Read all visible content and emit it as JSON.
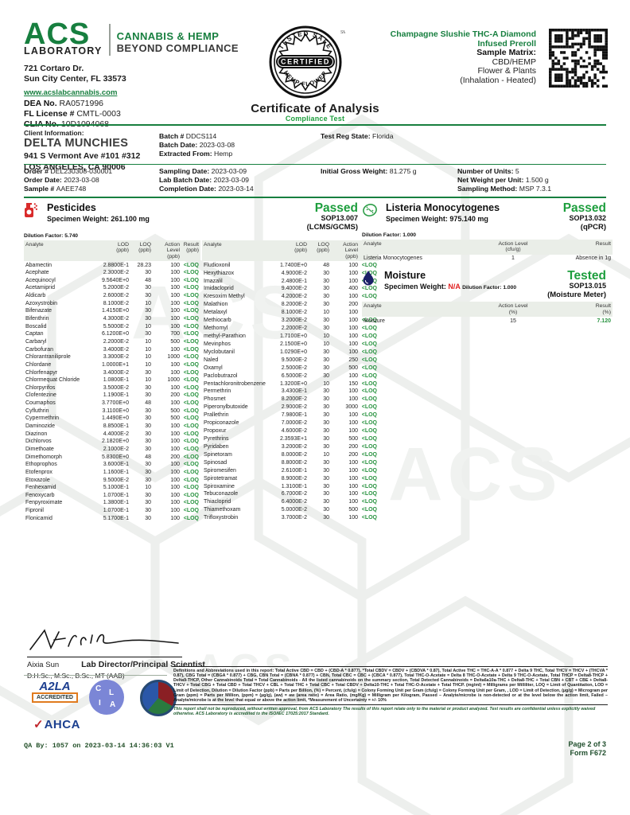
{
  "colors": {
    "brand_green": "#177f3f",
    "status_green": "#1d9e3d",
    "loq_green": "#27923f",
    "na_red": "#e02020"
  },
  "watermark_text": "ACS",
  "header": {
    "logo_acs": "ACS",
    "logo_laboratory": "LABORATORY",
    "tagline1": "CANNABIS & HEMP",
    "tagline2": "BEYOND COMPLIANCE",
    "address_line1": "721 Cortaro Dr.",
    "address_line2": "Sun City Center, FL 33573",
    "website": "www.acslabcannabis.com",
    "contact_fields": [
      {
        "label": "DEA No.",
        "value": "RA0571996"
      },
      {
        "label": "FL License #",
        "value": "CMTL-0003"
      },
      {
        "label": "CLIA No.",
        "value": "10D1094068"
      }
    ],
    "seal": {
      "top": "TESTED SAFE",
      "center": "CERTIFIED",
      "bottom": "HEMP FLOWER",
      "sm": "SM"
    },
    "product_line1": "Champagne Slushie THC-A Diamond",
    "product_line2": "Infused Preroll",
    "sample_matrix_label": "Sample Matrix:",
    "sample_matrix_lines": [
      "CBD/HEMP",
      "Flower & Plants",
      "(Inhalation - Heated)"
    ],
    "title": "Certificate of Analysis",
    "subtitle": "Compliance Test"
  },
  "client": {
    "label": "Client Information:",
    "name": "DELTA MUNCHIES",
    "address1": "941 S Vermont Ave #101 #312",
    "address2": "LOS ANGELES, CA 90006"
  },
  "batch_block": [
    {
      "label": "Batch #",
      "value": "DDCS114"
    },
    {
      "label": "Batch Date:",
      "value": "2023-03-08"
    },
    {
      "label": "Extracted From:",
      "value": "Hemp"
    }
  ],
  "test_reg_block": [
    {
      "label": "Test Reg State:",
      "value": "Florida"
    }
  ],
  "order_block": [
    {
      "label": "Order #",
      "value": "DEL230308-030001"
    },
    {
      "label": "Order Date:",
      "value": "2023-03-08"
    },
    {
      "label": "Sample #",
      "value": "AAEE748"
    }
  ],
  "sampling_block": [
    {
      "label": "Sampling Date:",
      "value": "2023-03-09"
    },
    {
      "label": "Lab Batch Date:",
      "value": "2023-03-09"
    },
    {
      "label": "Completion Date:",
      "value": "2023-03-14"
    }
  ],
  "gross_block": [
    {
      "label": "Initial Gross Weight:",
      "value": "81.275 g"
    }
  ],
  "units_block": [
    {
      "label": "Number of Units:",
      "value": "5"
    },
    {
      "label": "Net Weight per Unit:",
      "value": "1.500 g"
    },
    {
      "label": "Sampling Method:",
      "value": "MSP 7.3.1"
    }
  ],
  "pesticides": {
    "title": "Pesticides",
    "specimen_label": "Specimen Weight:",
    "specimen": "261.100 mg",
    "dilution_label": "Dilution Factor:",
    "dilution": "5.740",
    "status": "Passed",
    "sop": "SOP13.007",
    "method": "(LCMS/GCMS)",
    "columns": [
      {
        "key": "analyte",
        "label": "Analyte",
        "unit": ""
      },
      {
        "key": "lod",
        "label": "LOD",
        "unit": "(ppb)"
      },
      {
        "key": "loq",
        "label": "LOQ",
        "unit": "(ppb)"
      },
      {
        "key": "action",
        "label": "Action Level",
        "unit": "(ppb)"
      },
      {
        "key": "result",
        "label": "Result",
        "unit": "(ppb)"
      }
    ],
    "rows_left": [
      [
        "Abamectin",
        "2.8800E-1",
        "28.23",
        "100",
        "<LOQ"
      ],
      [
        "Acephate",
        "2.3000E-2",
        "30",
        "100",
        "<LOQ"
      ],
      [
        "Acequinocyl",
        "9.5640E+0",
        "48",
        "100",
        "<LOQ"
      ],
      [
        "Acetamiprid",
        "5.2000E-2",
        "30",
        "100",
        "<LOQ"
      ],
      [
        "Aldicarb",
        "2.6000E-2",
        "30",
        "100",
        "<LOQ"
      ],
      [
        "Azoxystrobin",
        "8.1000E-2",
        "10",
        "100",
        "<LOQ"
      ],
      [
        "Bifenazate",
        "1.4150E+0",
        "30",
        "100",
        "<LOQ"
      ],
      [
        "Bifenthrin",
        "4.3000E-2",
        "30",
        "100",
        "<LOQ"
      ],
      [
        "Boscalid",
        "5.5000E-2",
        "10",
        "100",
        "<LOQ"
      ],
      [
        "Captan",
        "6.1200E+0",
        "30",
        "700",
        "<LOQ"
      ],
      [
        "Carbaryl",
        "2.2000E-2",
        "10",
        "500",
        "<LOQ"
      ],
      [
        "Carbofuran",
        "3.4000E-2",
        "10",
        "100",
        "<LOQ"
      ],
      [
        "Chlorantraniliprole",
        "3.3000E-2",
        "10",
        "1000",
        "<LOQ"
      ],
      [
        "Chlordane",
        "1.0000E+1",
        "10",
        "100",
        "<LOQ"
      ],
      [
        "Chlorfenapyr",
        "3.4000E-2",
        "30",
        "100",
        "<LOQ"
      ],
      [
        "Chlormequat Chloride",
        "1.0800E-1",
        "10",
        "1000",
        "<LOQ"
      ],
      [
        "Chlorpyrifos",
        "3.5000E-2",
        "30",
        "100",
        "<LOQ"
      ],
      [
        "Clofentezine",
        "1.1900E-1",
        "30",
        "200",
        "<LOQ"
      ],
      [
        "Coumaphos",
        "3.7700E+0",
        "48",
        "100",
        "<LOQ"
      ],
      [
        "Cyfluthrin",
        "3.1100E+0",
        "30",
        "500",
        "<LOQ"
      ],
      [
        "Cypermethrin",
        "1.4490E+0",
        "30",
        "500",
        "<LOQ"
      ],
      [
        "Daminozide",
        "8.8500E-1",
        "30",
        "100",
        "<LOQ"
      ],
      [
        "Diazinon",
        "4.4000E-2",
        "30",
        "100",
        "<LOQ"
      ],
      [
        "Dichlorvos",
        "2.1820E+0",
        "30",
        "100",
        "<LOQ"
      ],
      [
        "Dimethoate",
        "2.1000E-2",
        "30",
        "100",
        "<LOQ"
      ],
      [
        "Dimethomorph",
        "5.8300E+0",
        "48",
        "200",
        "<LOQ"
      ],
      [
        "Ethoprophos",
        "3.6000E-1",
        "30",
        "100",
        "<LOQ"
      ],
      [
        "Etofenprox",
        "1.1600E-1",
        "30",
        "100",
        "<LOQ"
      ],
      [
        "Etoxazole",
        "9.5000E-2",
        "30",
        "100",
        "<LOQ"
      ],
      [
        "Fenhexamid",
        "5.1000E-1",
        "10",
        "100",
        "<LOQ"
      ],
      [
        "Fenoxycarb",
        "1.0700E-1",
        "30",
        "100",
        "<LOQ"
      ],
      [
        "Fenpyroximate",
        "1.3800E-1",
        "30",
        "100",
        "<LOQ"
      ],
      [
        "Fipronil",
        "1.0700E-1",
        "30",
        "100",
        "<LOQ"
      ],
      [
        "Flonicamid",
        "5.1700E-1",
        "30",
        "100",
        "<LOQ"
      ]
    ],
    "rows_right": [
      [
        "Fludioxonil",
        "1.7400E+0",
        "48",
        "100",
        "<LOQ"
      ],
      [
        "Hexythiazox",
        "4.9000E-2",
        "30",
        "100",
        "<LOQ"
      ],
      [
        "Imazalil",
        "2.4800E-1",
        "30",
        "100",
        "<LOQ"
      ],
      [
        "Imidacloprid",
        "9.4000E-2",
        "30",
        "400",
        "<LOQ"
      ],
      [
        "Kresoxim Methyl",
        "4.2000E-2",
        "30",
        "100",
        "<LOQ"
      ],
      [
        "Malathion",
        "8.2000E-2",
        "30",
        "200",
        "<LOQ"
      ],
      [
        "Metalaxyl",
        "8.1000E-2",
        "10",
        "100",
        "<LOQ"
      ],
      [
        "Methiocarb",
        "3.2000E-2",
        "30",
        "100",
        "<LOQ"
      ],
      [
        "Methomyl",
        "2.2000E-2",
        "30",
        "100",
        "<LOQ"
      ],
      [
        "methyl-Parathion",
        "1.7100E+0",
        "10",
        "100",
        "<LOQ"
      ],
      [
        "Mevinphos",
        "2.1500E+0",
        "10",
        "100",
        "<LOQ"
      ],
      [
        "Myclobutanil",
        "1.0290E+0",
        "30",
        "100",
        "<LOQ"
      ],
      [
        "Naled",
        "9.5000E-2",
        "30",
        "250",
        "<LOQ"
      ],
      [
        "Oxamyl",
        "2.5000E-2",
        "30",
        "500",
        "<LOQ"
      ],
      [
        "Paclobutrazol",
        "6.5000E-2",
        "30",
        "100",
        "<LOQ"
      ],
      [
        "Pentachloronitrobenzene",
        "1.3200E+0",
        "10",
        "150",
        "<LOQ"
      ],
      [
        "Permethrin",
        "3.4300E-1",
        "30",
        "100",
        "<LOQ"
      ],
      [
        "Phosmet",
        "8.2000E-2",
        "30",
        "100",
        "<LOQ"
      ],
      [
        "Piperonylbutoxide",
        "2.9000E-2",
        "30",
        "3000",
        "<LOQ"
      ],
      [
        "Prallethrin",
        "7.9800E-1",
        "30",
        "100",
        "<LOQ"
      ],
      [
        "Propiconazole",
        "7.0000E-2",
        "30",
        "100",
        "<LOQ"
      ],
      [
        "Propoxur",
        "4.6000E-2",
        "30",
        "100",
        "<LOQ"
      ],
      [
        "Pyrethrins",
        "2.3593E+1",
        "30",
        "500",
        "<LOQ"
      ],
      [
        "Pyridaben",
        "3.2000E-2",
        "30",
        "200",
        "<LOQ"
      ],
      [
        "Spinetoram",
        "8.0000E-2",
        "10",
        "200",
        "<LOQ"
      ],
      [
        "Spinosad",
        "8.8000E-2",
        "30",
        "100",
        "<LOQ"
      ],
      [
        "Spiromesifen",
        "2.6100E-1",
        "30",
        "100",
        "<LOQ"
      ],
      [
        "Spirotetramat",
        "8.9000E-2",
        "30",
        "100",
        "<LOQ"
      ],
      [
        "Spiroxamine",
        "1.3100E-1",
        "30",
        "100",
        "<LOQ"
      ],
      [
        "Tebuconazole",
        "6.7000E-2",
        "30",
        "100",
        "<LOQ"
      ],
      [
        "Thiacloprid",
        "6.4000E-2",
        "30",
        "100",
        "<LOQ"
      ],
      [
        "Thiamethoxam",
        "5.0000E-2",
        "30",
        "500",
        "<LOQ"
      ],
      [
        "Trifloxystrobin",
        "3.7000E-2",
        "30",
        "100",
        "<LOQ"
      ]
    ]
  },
  "listeria": {
    "title": "Listeria Monocytogenes",
    "specimen_label": "Specimen Weight:",
    "specimen": "975.140 mg",
    "dilution_label": "Dilution Factor:",
    "dilution": "1.000",
    "status": "Passed",
    "sop": "SOP13.032",
    "method": "(qPCR)",
    "columns": [
      {
        "key": "analyte",
        "label": "Analyte",
        "unit": ""
      },
      {
        "key": "action",
        "label": "Action Level",
        "unit": "(cfu/g)"
      },
      {
        "key": "result",
        "label": "Result",
        "unit": ""
      }
    ],
    "rows": [
      [
        "Listeria Monocytogenes",
        "1",
        "Absence in 1g"
      ]
    ]
  },
  "moisture": {
    "title": "Moisture",
    "specimen_label": "Specimen Weight:",
    "specimen": "N/A",
    "dilution_label": "Dilution Factor:",
    "dilution": "1.000",
    "status": "Tested",
    "sop": "SOP13.015",
    "method": "(Moisture Meter)",
    "columns": [
      {
        "key": "analyte",
        "label": "Analyte",
        "unit": ""
      },
      {
        "key": "action",
        "label": "Action Level",
        "unit": "(%)"
      },
      {
        "key": "result",
        "label": "Result",
        "unit": "(%)"
      }
    ],
    "rows": [
      [
        "Moisture",
        "15",
        "7.120"
      ]
    ]
  },
  "signature": {
    "name": "Aixia Sun",
    "title": "Lab Director/Principal Scientist",
    "degrees": "D.H.Sc., M.Sc., B.Sc., MT (AAB)"
  },
  "accreditations": {
    "a2la": "A2LA",
    "a2la_box": "ACCREDITED",
    "clia": [
      "C",
      "L",
      "I",
      "A"
    ],
    "ahca": "AHCA"
  },
  "definitions": {
    "text": "Definitions and Abbreviations used in this report: Total Active CBD = CBD + (CBD-A * 0.877), *Total CBDV = CBDV + (CBDVA * 0.87), Total Active THC = THC-A-A * 0.877 + Delta 9 THC, Total THCV = THCV + (THCVA * 0.87), CBG Total = (CBGA * 0.877) + CBG, CBN Total = (CBNA * 0.877) + CBN, Total CBC = CBC + (CBCA * 0.877), Total THC-O-Acetate = Delta 8 THC-O-Acetate + Delta 9 THC-O-Acetate, Total THCP = Delta8-THCP + Delta9-THCP, Other Cannabinoids Total = Total Cannabinoids - All the listed cannabinoids on the summary section, Total Detected Cannabinoids = Delta6a10a-THC + Delta8-THC + Total CBN + CBT + CBE + Delta8-THCV + Total CBG + Total CBD + Total THCV + CBL + Total THC + Total CBC + Total CBDV + Delta10-THC + Total THC-O-Acetate + Total THCP. (mg/ml) = Milligrams per Milliliter, LOQ = Limit of Quantitation, LOD = Limit of Detection, Dilution = Dilution Factor (ppb) = Parts per Billion, (%) = Percent, (cfu/g) = Colony Forming Unit per Gram (cfu/g) = Colony Forming Unit per Gram, , LOD = Limit of Detection, (µg/g) = Microgram per Gram (ppm) = Parts per Million, (ppm) = (µg/g), (aw) = aw (area ratio) = Area Ratio, (mg/Kg) = Milligram per Kilogram, Passed – Analyte/microbe is non-detected or at the level below the action limit, Failed – Analyte/microbe is at the level that equal or above the action limit, *Measurement of Uncertainty = +/- 10%",
    "disclaimer": "This report shall not be reproduced, without written approval, from ACS Laboratory The results of this report relate only to the material or product analyzed. Test results are confidential unless explicitly waived otherwise. ACS Laboratory is accredited to the ISO/IEC 17025:2017 Standard."
  },
  "footer": {
    "qa": "QA By: 1057 on 2023-03-14 14:36:03 V1",
    "page": "Page 2 of 3",
    "form": "Form F672"
  }
}
